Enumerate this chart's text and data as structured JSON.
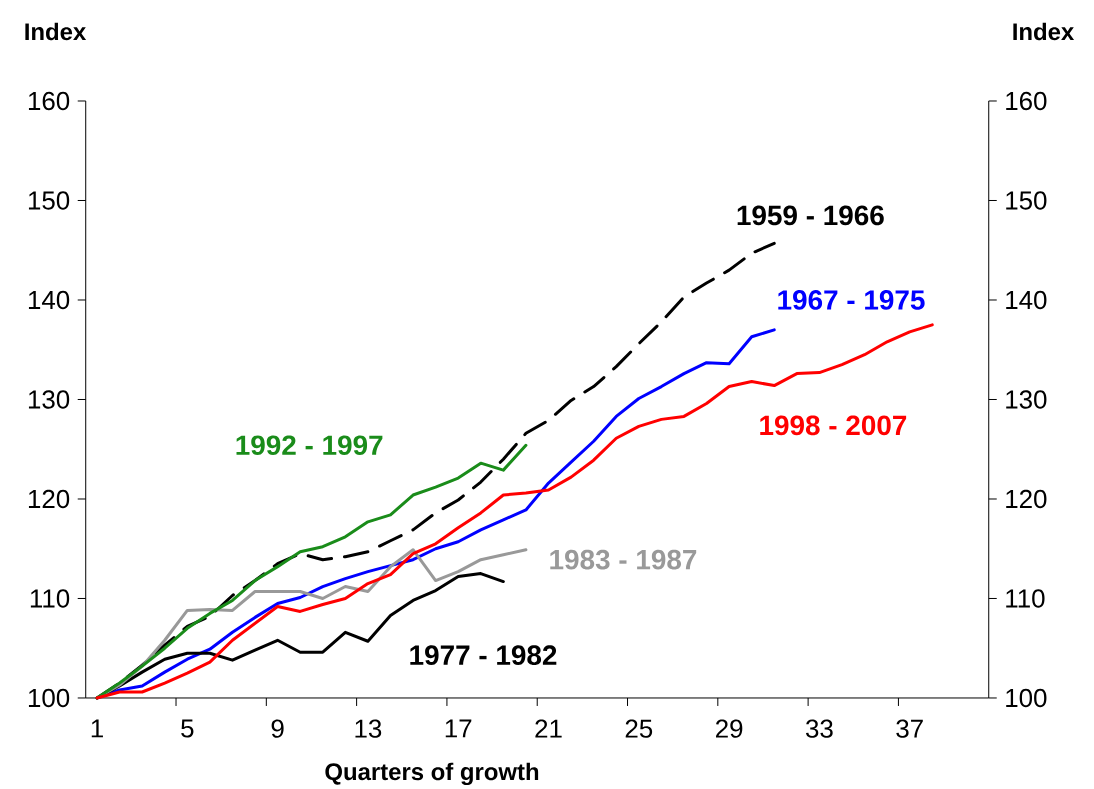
{
  "chart_data": {
    "type": "line",
    "xlabel": "Quarters of growth",
    "ylabel": "Index",
    "y2label": "Index",
    "categories": [
      "1",
      null,
      null,
      null,
      "5",
      null,
      null,
      null,
      "9",
      null,
      null,
      null,
      "13",
      null,
      null,
      null,
      "17",
      null,
      null,
      null,
      "21",
      null,
      null,
      null,
      "25",
      null,
      null,
      null,
      "29",
      null,
      null,
      null,
      "33",
      null,
      null,
      null,
      "37",
      null,
      null,
      null
    ],
    "ylim": [
      100,
      160
    ],
    "yticks": [
      100,
      110,
      120,
      130,
      140,
      150,
      160
    ],
    "y2lim": [
      100,
      160
    ],
    "y2ticks": [
      100,
      110,
      120,
      130,
      140,
      150,
      160
    ],
    "grid": false,
    "legend": false,
    "marker": "none",
    "series": [
      {
        "name": "1959 - 1966",
        "color": "#000000",
        "line_style": "dashed",
        "values": [
          100,
          101.5,
          103.3,
          105.3,
          107.2,
          108.2,
          110.3,
          111.8,
          113.5,
          114.5,
          113.9,
          114.2,
          114.7,
          115.8,
          116.9,
          118.6,
          119.9,
          121.7,
          124.0,
          126.6,
          127.9,
          129.9,
          131.3,
          133.3,
          135.6,
          137.8,
          140.3,
          141.7,
          143.0,
          144.7,
          145.7,
          null,
          null,
          null,
          null,
          null,
          null,
          null,
          null,
          null
        ]
      },
      {
        "name": "1967 - 1975",
        "color": "#0000ff",
        "values": [
          100,
          100.8,
          101.2,
          102.6,
          103.9,
          104.9,
          106.6,
          108.1,
          109.5,
          110.1,
          111.2,
          112.0,
          112.7,
          113.3,
          113.9,
          115.0,
          115.7,
          116.9,
          117.9,
          118.9,
          121.6,
          123.7,
          125.8,
          128.3,
          130.1,
          131.3,
          132.6,
          133.7,
          133.6,
          136.3,
          137.0,
          null,
          null,
          null,
          null,
          null,
          null,
          null,
          null,
          null
        ]
      },
      {
        "name": "1977 - 1982",
        "color": "#000000",
        "values": [
          100,
          101.2,
          102.6,
          103.9,
          104.5,
          104.5,
          103.8,
          104.8,
          105.8,
          104.6,
          104.6,
          106.6,
          105.7,
          108.3,
          109.8,
          110.8,
          112.2,
          112.5,
          111.7,
          null,
          null,
          null,
          null,
          null,
          null,
          null,
          null,
          null,
          null,
          null,
          null,
          null,
          null,
          null,
          null,
          null,
          null,
          null,
          null,
          null
        ]
      },
      {
        "name": "1983 - 1987",
        "color": "#999999",
        "values": [
          100,
          101.3,
          103.2,
          105.8,
          108.8,
          108.9,
          108.8,
          110.7,
          110.7,
          110.7,
          110.0,
          111.2,
          110.7,
          113.2,
          114.9,
          111.8,
          112.7,
          113.9,
          114.4,
          114.9,
          null,
          null,
          null,
          null,
          null,
          null,
          null,
          null,
          null,
          null,
          null,
          null,
          null,
          null,
          null,
          null,
          null,
          null,
          null,
          null
        ]
      },
      {
        "name": "1992 - 1997",
        "color": "#1a8c1a",
        "values": [
          100,
          101.5,
          103.2,
          105.0,
          107.0,
          108.5,
          109.8,
          111.8,
          113.2,
          114.7,
          115.2,
          116.2,
          117.7,
          118.4,
          120.4,
          121.2,
          122.1,
          123.6,
          122.9,
          125.4,
          null,
          null,
          null,
          null,
          null,
          null,
          null,
          null,
          null,
          null,
          null,
          null,
          null,
          null,
          null,
          null,
          null,
          null,
          null,
          null
        ]
      },
      {
        "name": "1998 - 2007",
        "color": "#ff0000",
        "values": [
          100,
          100.6,
          100.6,
          101.5,
          102.5,
          103.6,
          105.8,
          107.5,
          109.2,
          108.7,
          109.4,
          110.0,
          111.5,
          112.4,
          114.5,
          115.5,
          117.1,
          118.6,
          120.4,
          120.6,
          120.9,
          122.2,
          123.9,
          126.1,
          127.3,
          128.0,
          128.3,
          129.6,
          131.3,
          131.8,
          131.4,
          132.6,
          132.7,
          133.5,
          134.5,
          135.8,
          136.8,
          137.5,
          null,
          null
        ]
      }
    ]
  }
}
